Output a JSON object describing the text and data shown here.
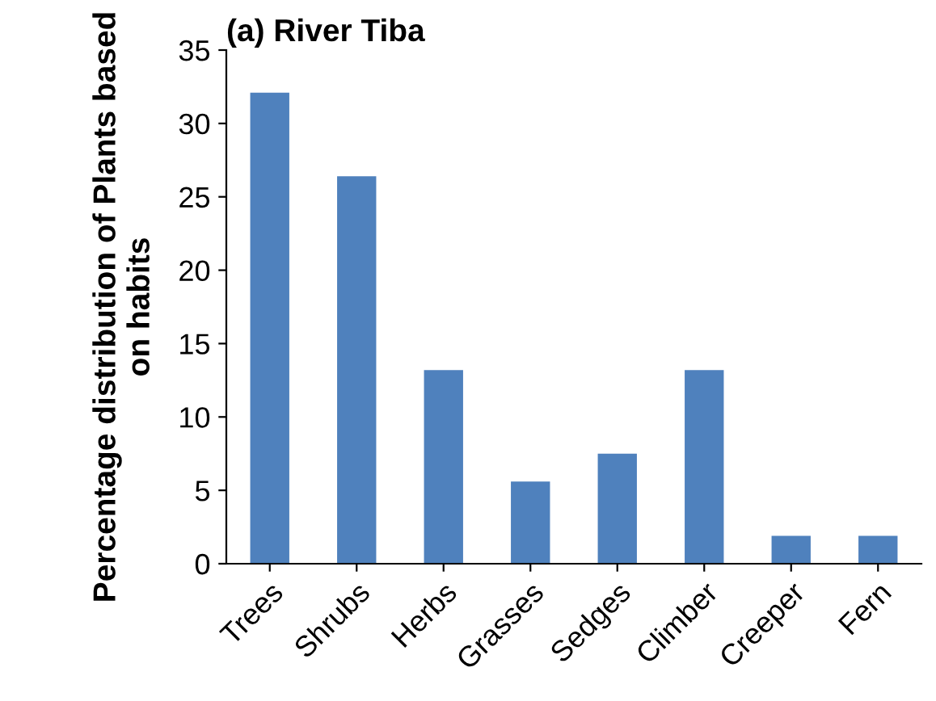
{
  "chart_data": {
    "type": "bar",
    "title": "(a) River Tiba",
    "ylabel": "Percentage distribution of Plants based on habits",
    "categories": [
      "Trees",
      "Shrubs",
      "Herbs",
      "Grasses",
      "Sedges",
      "Climber",
      "Creeper",
      "Fern"
    ],
    "values": [
      32.1,
      26.4,
      13.2,
      5.6,
      7.5,
      13.2,
      1.9,
      1.9
    ],
    "color": "#4f81bd",
    "ylim": [
      0,
      35
    ],
    "yticks": [
      0,
      5,
      10,
      15,
      20,
      25,
      30,
      35
    ],
    "grid": false,
    "legend": false
  }
}
